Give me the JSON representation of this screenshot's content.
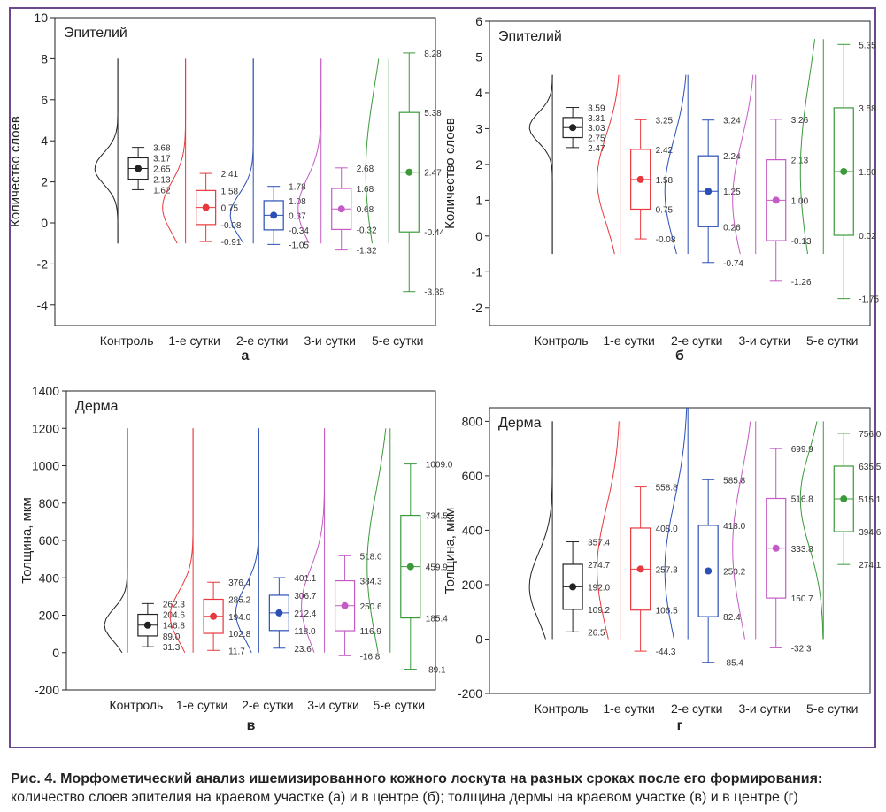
{
  "caption": {
    "title": "Рис. 4. Морфометический анализ ишемизированного кожного лоскута на разных сроках после его формирования:",
    "text": "количество слоев эпителия на краевом участке (а) и в центре (б); толщина дермы на краевом участке (в) и в центре (г)"
  },
  "colors": {
    "Контроль": "#222222",
    "1-е сутки": "#e8383d",
    "2-е сутки": "#2a4fb5",
    "3-и сутки": "#c55bc5",
    "5-е сутки": "#3a9a3a",
    "frame": "#6a4a8c"
  },
  "chart_data": [
    {
      "panel": "а",
      "type": "box",
      "title": "Эпителий",
      "ylabel": "Количество слоев",
      "ylim": [
        -5,
        10
      ],
      "yticks": [
        -4,
        -2,
        0,
        2,
        4,
        6,
        8,
        10
      ],
      "categories": [
        "Контроль",
        "1-е сутки",
        "2-е сутки",
        "3-и сутки",
        "5-е сутки"
      ],
      "violin_range": [
        [
          -1,
          8
        ],
        [
          -1,
          8
        ],
        [
          -1,
          8
        ],
        [
          -1,
          8
        ],
        [
          -1,
          8
        ]
      ],
      "boxes": [
        {
          "max": 3.68,
          "q3": 3.17,
          "median": 2.65,
          "mean": 2.65,
          "q1": 2.13,
          "min": 1.62,
          "labels": [
            "3.68",
            "3.17",
            "2.65",
            "2.13",
            "1.62"
          ]
        },
        {
          "max": 2.41,
          "q3": 1.58,
          "median": 0.75,
          "mean": 0.75,
          "q1": -0.08,
          "min": -0.91,
          "labels": [
            "2.41",
            "1.58",
            "0.75",
            "-0.08",
            "-0.91"
          ]
        },
        {
          "max": 1.78,
          "q3": 1.08,
          "median": 0.37,
          "mean": 0.37,
          "q1": -0.34,
          "min": -1.05,
          "labels": [
            "1.78",
            "1.08",
            "0.37",
            "-0.34",
            "-1.05"
          ]
        },
        {
          "max": 2.68,
          "q3": 1.68,
          "median": 0.68,
          "mean": 0.68,
          "q1": -0.32,
          "min": -1.32,
          "labels": [
            "2.68",
            "1.68",
            "0.68",
            "-0.32",
            "-1.32"
          ]
        },
        {
          "max": 8.28,
          "q3": 5.38,
          "median": 2.47,
          "mean": 2.47,
          "q1": -0.44,
          "min": -3.35,
          "labels": [
            "8.28",
            "5.38",
            "2.47",
            "-0.44",
            "-3.35"
          ]
        }
      ]
    },
    {
      "panel": "б",
      "type": "box",
      "title": "Эпителий",
      "ylabel": "Количество слоев",
      "ylim": [
        -2.5,
        6
      ],
      "yticks": [
        -2,
        -1,
        0,
        1,
        2,
        3,
        4,
        5,
        6
      ],
      "categories": [
        "Контроль",
        "1-е сутки",
        "2-е сутки",
        "3-и сутки",
        "5-е сутки"
      ],
      "violin_range": [
        [
          -0.5,
          4.5
        ],
        [
          -0.5,
          4.5
        ],
        [
          -0.5,
          4.5
        ],
        [
          -0.5,
          4.5
        ],
        [
          -0.5,
          5.5
        ]
      ],
      "boxes": [
        {
          "max": 3.59,
          "q3": 3.31,
          "median": 3.03,
          "mean": 3.03,
          "q1": 2.75,
          "min": 2.47,
          "labels": [
            "3.59",
            "3.31",
            "3.03",
            "2.75",
            "2.47"
          ]
        },
        {
          "max": 3.25,
          "q3": 2.42,
          "median": 1.58,
          "mean": 1.58,
          "q1": 0.75,
          "min": -0.08,
          "labels": [
            "3.25",
            "2.42",
            "1.58",
            "0.75",
            "-0.08"
          ]
        },
        {
          "max": 3.24,
          "q3": 2.24,
          "median": 1.25,
          "mean": 1.25,
          "q1": 0.26,
          "min": -0.74,
          "labels": [
            "3.24",
            "2.24",
            "1.25",
            "0.26",
            "-0.74"
          ]
        },
        {
          "max": 3.26,
          "q3": 2.13,
          "median": 1.0,
          "mean": 1.0,
          "q1": -0.13,
          "min": -1.26,
          "labels": [
            "3.26",
            "2.13",
            "1.00",
            "-0.13",
            "-1.26"
          ]
        },
        {
          "max": 5.35,
          "q3": 3.58,
          "median": 1.8,
          "mean": 1.8,
          "q1": 0.02,
          "min": -1.75,
          "labels": [
            "5.35",
            "3.58",
            "1.80",
            "0.02",
            "-1.75"
          ]
        }
      ]
    },
    {
      "panel": "в",
      "type": "box",
      "title": "Дерма",
      "ylabel": "Толщина, мкм",
      "ylim": [
        -200,
        1400
      ],
      "yticks": [
        -200,
        0,
        200,
        400,
        600,
        800,
        1000,
        1200,
        1400
      ],
      "categories": [
        "Контроль",
        "1-е сутки",
        "2-е сутки",
        "3-и сутки",
        "5-е сутки"
      ],
      "violin_range": [
        [
          0,
          1200
        ],
        [
          0,
          1200
        ],
        [
          0,
          1200
        ],
        [
          0,
          1200
        ],
        [
          0,
          1200
        ]
      ],
      "boxes": [
        {
          "max": 262.3,
          "q3": 204.6,
          "median": 146.8,
          "mean": 146.8,
          "q1": 89.0,
          "min": 31.3,
          "labels": [
            "262.3",
            "204.6",
            "146.8",
            "89.0",
            "31.3"
          ]
        },
        {
          "max": 376.4,
          "q3": 285.2,
          "median": 194.0,
          "mean": 194.0,
          "q1": 102.8,
          "min": 11.7,
          "labels": [
            "376.4",
            "285.2",
            "194.0",
            "102.8",
            "11.7"
          ]
        },
        {
          "max": 401.1,
          "q3": 306.7,
          "median": 212.4,
          "mean": 212.4,
          "q1": 118.0,
          "min": 23.6,
          "labels": [
            "401.1",
            "306.7",
            "212.4",
            "118.0",
            "23.6"
          ]
        },
        {
          "max": 518.0,
          "q3": 384.3,
          "median": 250.6,
          "mean": 250.6,
          "q1": 116.9,
          "min": -16.8,
          "labels": [
            "518.0",
            "384.3",
            "250.6",
            "116.9",
            "-16.8"
          ]
        },
        {
          "max": 1009.0,
          "q3": 734.5,
          "median": 459.9,
          "mean": 459.9,
          "q1": 185.4,
          "min": -89.1,
          "labels": [
            "1009.0",
            "734.5",
            "459.9",
            "185.4",
            "-89.1"
          ]
        }
      ]
    },
    {
      "panel": "г",
      "type": "box",
      "title": "Дерма",
      "ylabel": "Толщина, мкм",
      "ylim": [
        -200,
        850
      ],
      "yticks": [
        -200,
        0,
        200,
        400,
        600,
        800
      ],
      "categories": [
        "Контроль",
        "1-е сутки",
        "2-е сутки",
        "3-и сутки",
        "5-е сутки"
      ],
      "violin_range": [
        [
          0,
          800
        ],
        [
          0,
          800
        ],
        [
          0,
          850
        ],
        [
          0,
          800
        ],
        [
          0,
          800
        ]
      ],
      "boxes": [
        {
          "max": 357.4,
          "q3": 274.7,
          "median": 192.0,
          "mean": 192.0,
          "q1": 109.2,
          "min": 26.5,
          "labels": [
            "357.4",
            "274.7",
            "192.0",
            "109.2",
            "26.5"
          ]
        },
        {
          "max": 558.8,
          "q3": 408.0,
          "median": 257.3,
          "mean": 257.3,
          "q1": 106.5,
          "min": -44.3,
          "labels": [
            "558.8",
            "408.0",
            "257.3",
            "106.5",
            "-44.3"
          ]
        },
        {
          "max": 585.8,
          "q3": 418.0,
          "median": 250.2,
          "mean": 250.2,
          "q1": 82.4,
          "min": -85.4,
          "labels": [
            "585.8",
            "418.0",
            "250.2",
            "82.4",
            "-85.4"
          ]
        },
        {
          "max": 699.9,
          "q3": 516.8,
          "median": 333.8,
          "mean": 333.8,
          "q1": 150.7,
          "min": -32.3,
          "labels": [
            "699.9",
            "516.8",
            "333.8",
            "150.7",
            "-32.3"
          ]
        },
        {
          "max": 756.0,
          "q3": 635.5,
          "median": 515.1,
          "mean": 515.1,
          "q1": 394.6,
          "min": 274.1,
          "labels": [
            "756.0",
            "635.5",
            "515.1",
            "394.6",
            "274.1"
          ]
        }
      ]
    }
  ]
}
